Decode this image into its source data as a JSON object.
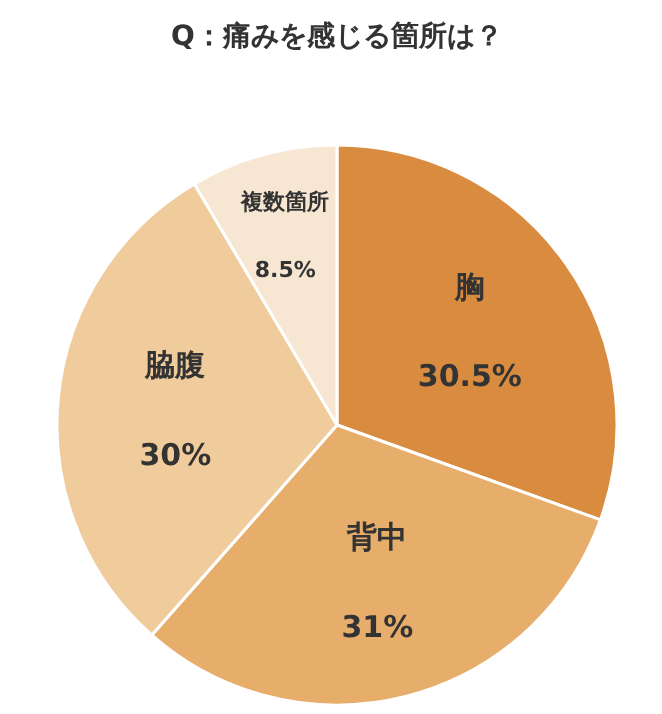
{
  "chart_data": {
    "type": "pie",
    "title": "Q：痛みを感じる箇所は？",
    "categories": [
      "胸",
      "背中",
      "脇腹",
      "複数箇所"
    ],
    "values": [
      30.5,
      31,
      30,
      8.5
    ],
    "value_labels": [
      "30.5%",
      "31%",
      "30%",
      "8.5%"
    ],
    "colors": [
      "#d98c40",
      "#e6ad6b",
      "#f0cb9c",
      "#f7e7d2"
    ]
  }
}
